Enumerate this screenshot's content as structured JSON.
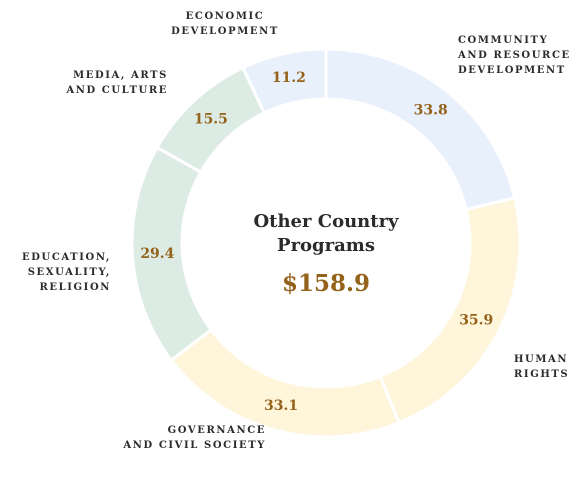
{
  "chart_data": {
    "type": "donut",
    "center_title": "Other Country\nPrograms",
    "center_value": "$158.9",
    "categories": [
      "COMMUNITY\nAND RESOURCE\nDEVELOPMENT",
      "HUMAN\nRIGHTS",
      "GOVERNANCE\nAND CIVIL SOCIETY",
      "EDUCATION,\nSEXUALITY,\nRELIGION",
      "MEDIA, ARTS\nAND CULTURE",
      "ECONOMIC\nDEVELOPMENT"
    ],
    "values": [
      33.8,
      35.9,
      33.1,
      29.4,
      15.5,
      11.2
    ],
    "colors": [
      "#e8f0fb",
      "#fef5da",
      "#fef5da",
      "#dcebe3",
      "#dcebe3",
      "#e8f0fb"
    ]
  }
}
